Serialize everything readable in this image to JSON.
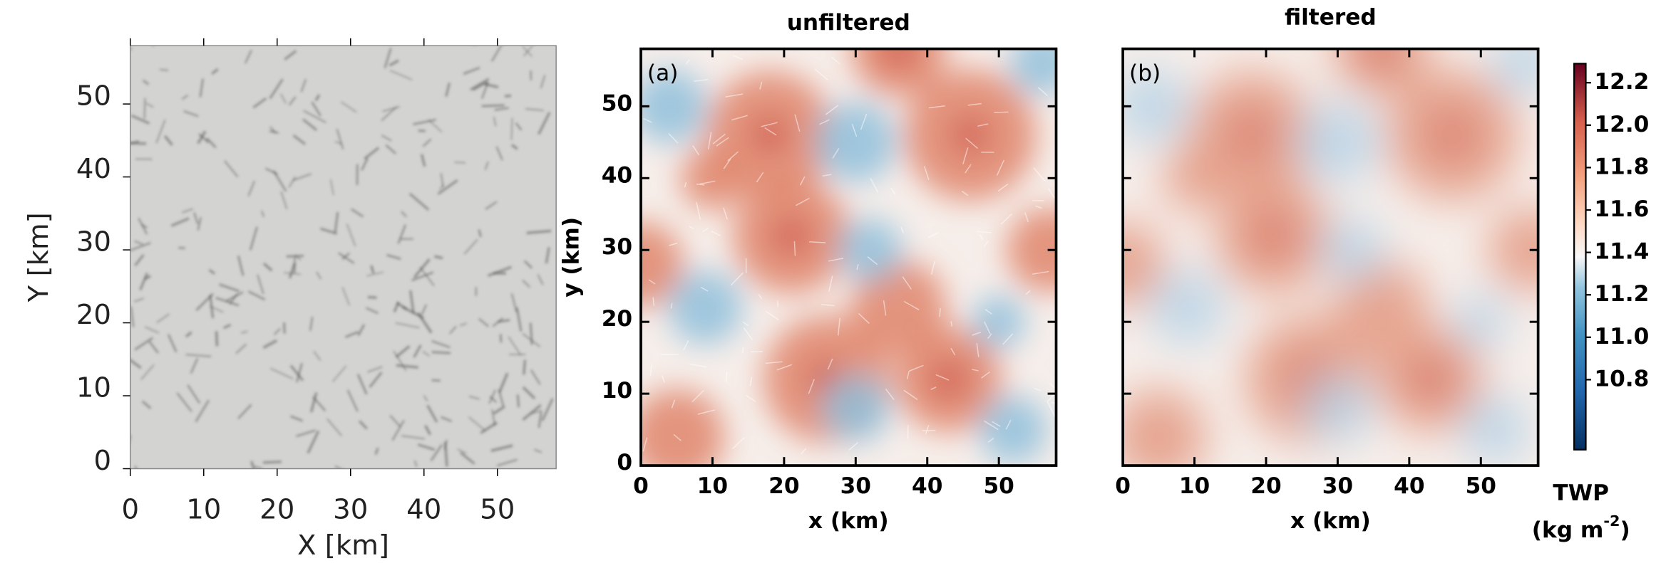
{
  "chart_data": [
    {
      "type": "heatmap",
      "xlabel": "X [km]",
      "ylabel": "Y [km]",
      "xlim": [
        0,
        58
      ],
      "ylim": [
        0,
        58
      ],
      "xticks": [
        0,
        10,
        20,
        30,
        40,
        50
      ],
      "yticks": [
        0,
        10,
        20,
        30,
        40,
        50
      ],
      "colormap": "gray"
    },
    {
      "type": "heatmap",
      "title": "unfiltered",
      "annotation": "(a)",
      "xlabel": "x (km)",
      "ylabel": "y (km)",
      "xlim": [
        0,
        58
      ],
      "ylim": [
        0,
        58
      ],
      "xticks": [
        0,
        10,
        20,
        30,
        40,
        50
      ],
      "yticks": [
        0,
        10,
        20,
        30,
        40,
        50
      ],
      "colormap": "RdBu_r"
    },
    {
      "type": "heatmap",
      "title": "filtered",
      "annotation": "(b)",
      "xlabel": "x (km)",
      "xlim": [
        0,
        58
      ],
      "ylim": [
        0,
        58
      ],
      "xticks": [
        0,
        10,
        20,
        30,
        40,
        50
      ],
      "yticks": [
        0,
        10,
        20,
        30,
        40,
        50
      ],
      "ytick_labels": false,
      "colormap": "RdBu_r",
      "colorbar": {
        "label": "TWP",
        "unit": "(kg m",
        "unit_exponent": "-2",
        "unit_close": ")",
        "clim": [
          10.47,
          12.29
        ],
        "ticks": [
          10.8,
          11.0,
          11.2,
          11.4,
          11.6,
          11.8,
          12.0,
          12.2
        ],
        "tick_labels": [
          "10.8",
          "11.0",
          "11.2",
          "11.4",
          "11.6",
          "11.8",
          "12.0",
          "12.2"
        ]
      }
    }
  ]
}
